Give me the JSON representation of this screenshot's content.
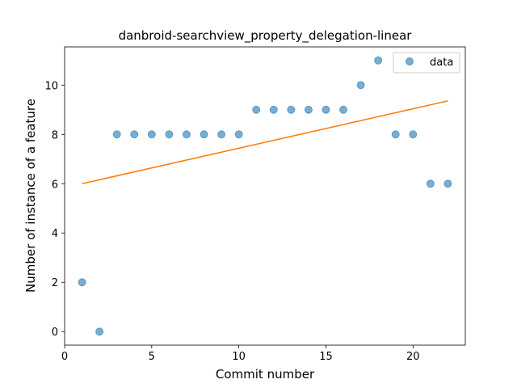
{
  "chart_data": {
    "type": "scatter",
    "title": "danbroid-searchview_property_delegation-linear",
    "xlabel": "Commit number",
    "ylabel": "Number of instance of a feature",
    "xlim": [
      0,
      23
    ],
    "ylim": [
      -0.55,
      11.55
    ],
    "xticks": [
      0,
      5,
      10,
      15,
      20
    ],
    "yticks": [
      0,
      2,
      4,
      6,
      8,
      10
    ],
    "grid": false,
    "legend_position": "top-right",
    "series": [
      {
        "name": "data",
        "kind": "scatter",
        "color": "#1f77b4",
        "x": [
          1,
          2,
          3,
          4,
          5,
          6,
          7,
          8,
          9,
          10,
          11,
          12,
          13,
          14,
          15,
          16,
          17,
          18,
          19,
          20,
          21,
          22
        ],
        "y": [
          2,
          0,
          8,
          8,
          8,
          8,
          8,
          8,
          8,
          8,
          9,
          9,
          9,
          9,
          9,
          9,
          10,
          11,
          8,
          8,
          6,
          6
        ]
      },
      {
        "kind": "line",
        "color": "#ff7f0e",
        "x": [
          1,
          22
        ],
        "y": [
          6.0,
          9.36
        ]
      }
    ]
  }
}
